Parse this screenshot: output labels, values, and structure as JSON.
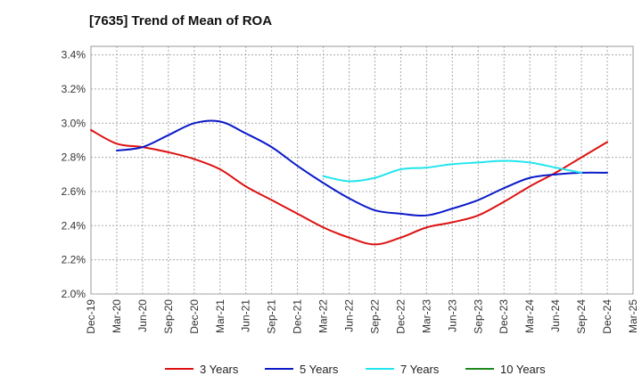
{
  "chart_data": {
    "type": "line",
    "title": "[7635]  Trend of Mean of ROA",
    "xlabel": "",
    "ylabel": "",
    "x_ticks": [
      "Dec-19",
      "Mar-20",
      "Jun-20",
      "Sep-20",
      "Dec-20",
      "Mar-21",
      "Jun-21",
      "Sep-21",
      "Dec-21",
      "Mar-22",
      "Jun-22",
      "Sep-22",
      "Dec-22",
      "Mar-23",
      "Jun-23",
      "Sep-23",
      "Dec-23",
      "Mar-24",
      "Jun-24",
      "Sep-24",
      "Dec-24",
      "Mar-25"
    ],
    "y_ticks": [
      "2.0%",
      "2.2%",
      "2.4%",
      "2.6%",
      "2.8%",
      "3.0%",
      "3.2%",
      "3.4%"
    ],
    "ylim": [
      2.0,
      3.45
    ],
    "grid": true,
    "legend_position": "bottom",
    "series": [
      {
        "name": "3 Years",
        "color": "#dd1111",
        "start_index": 0,
        "values": [
          2.96,
          2.88,
          2.86,
          2.83,
          2.79,
          2.73,
          2.63,
          2.55,
          2.47,
          2.39,
          2.33,
          2.29,
          2.33,
          2.39,
          2.42,
          2.46,
          2.54,
          2.63,
          2.71,
          2.8,
          2.89
        ]
      },
      {
        "name": "5 Years",
        "color": "#0a1ac8",
        "start_index": 1,
        "values": [
          2.84,
          2.86,
          2.93,
          3.0,
          3.01,
          2.94,
          2.86,
          2.75,
          2.65,
          2.56,
          2.49,
          2.47,
          2.46,
          2.5,
          2.55,
          2.62,
          2.68,
          2.7,
          2.71,
          2.71
        ]
      },
      {
        "name": "7 Years",
        "color": "#22e5ee",
        "start_index": 9,
        "values": [
          2.69,
          2.66,
          2.68,
          2.73,
          2.74,
          2.76,
          2.77,
          2.78,
          2.77,
          2.74,
          2.71
        ]
      },
      {
        "name": "10 Years",
        "color": "#1e8a1e",
        "start_index": 0,
        "values": []
      }
    ]
  }
}
